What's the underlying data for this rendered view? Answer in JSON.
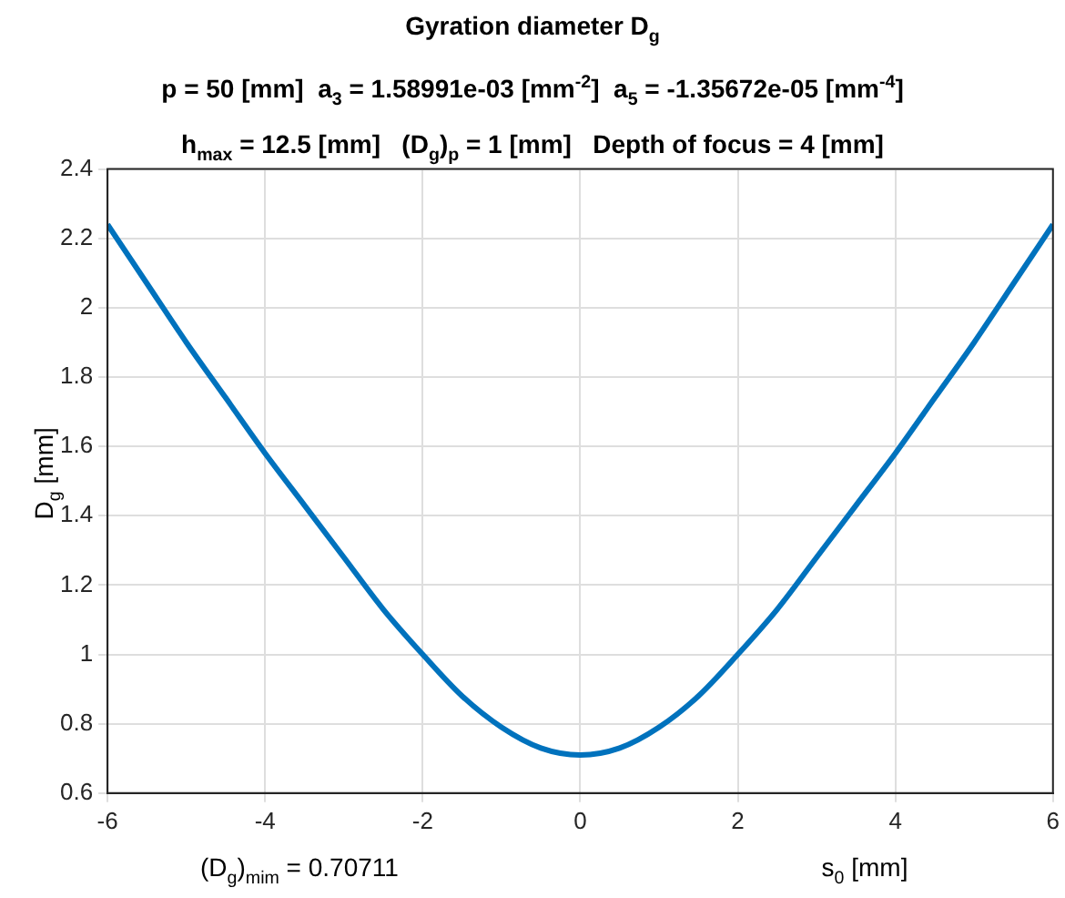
{
  "chart_data": {
    "type": "line",
    "title": "Gyration diameter D$_{g}$",
    "subtitle": "p = 50 [mm]  a$_{3}$ = 1.58991e-03 [mm$^{-2}$]  a$_{5}$ = -1.35672e-05 [mm$^{-4}$]\nh$_{max}$ = 12.5 [mm]   (D$_{g}$)$_{p}$ = 1 [mm]   Depth of focus = 4 [mm]",
    "xlabel": "s$_{0}$ [mm]",
    "ylabel": "D$_{g}$ [mm]",
    "annotations": [
      "(D$_{g}$)$_{mim}$ = 0.70711"
    ],
    "x": [
      -6,
      -5.5,
      -5,
      -4.5,
      -4,
      -3.5,
      -3,
      -2.5,
      -2,
      -1.5,
      -1,
      -0.5,
      0,
      0.5,
      1,
      1.5,
      2,
      2.5,
      3,
      3.5,
      4,
      4.5,
      5,
      5.5,
      6
    ],
    "series": [
      {
        "color": "#0072bd",
        "values": [
          2.24,
          2.07,
          1.9,
          1.74,
          1.58,
          1.43,
          1.28,
          1.13,
          1.0,
          0.88,
          0.79,
          0.73,
          0.71,
          0.73,
          0.79,
          0.88,
          1.0,
          1.13,
          1.28,
          1.43,
          1.58,
          1.74,
          1.9,
          2.07,
          2.24
        ]
      }
    ],
    "xlim": [
      -6,
      6
    ],
    "xticks": [
      -6,
      -4,
      -2,
      0,
      2,
      4,
      6
    ],
    "ylim": [
      0.6,
      2.4
    ],
    "yticks": [
      0.6,
      0.8,
      1,
      1.2,
      1.4,
      1.6,
      1.8,
      2,
      2.2,
      2.4
    ],
    "grid": true,
    "legend": false,
    "marker": "none",
    "line_style": "solid"
  }
}
